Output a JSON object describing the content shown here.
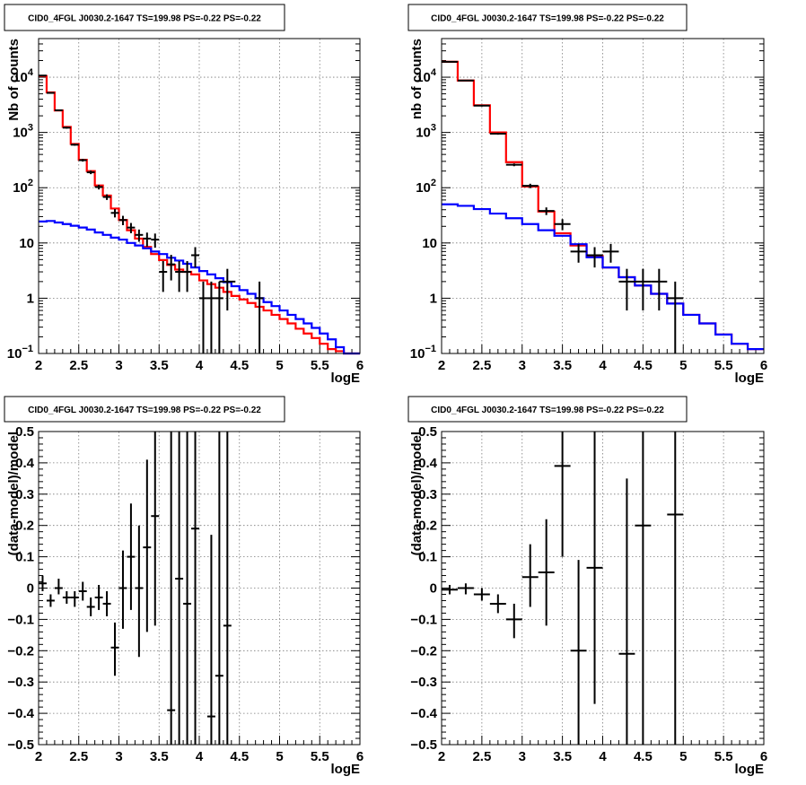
{
  "chart_data": [
    {
      "type": "step",
      "title": "CID0_4FGL J0030.2-1647 TS=199.98 PS=-0.22 PS=-0.22",
      "xlabel": "logE",
      "ylabel": "Nb of counts",
      "xscale": "linear",
      "yscale": "log",
      "xlim": [
        2,
        6
      ],
      "ylim": [
        0.1,
        50000
      ],
      "grid": true,
      "x_ticks": [
        "2",
        "2.5",
        "3",
        "3.5",
        "4",
        "4.5",
        "5",
        "5.5",
        "6"
      ],
      "y_ticks": [
        {
          "v": 0.1,
          "base": "10",
          "exp": "−1"
        },
        {
          "v": 1,
          "label": "1"
        },
        {
          "v": 10,
          "label": "10"
        },
        {
          "v": 100,
          "base": "10",
          "exp": "2"
        },
        {
          "v": 1000,
          "base": "10",
          "exp": "3"
        },
        {
          "v": 10000,
          "base": "10",
          "exp": "4"
        }
      ],
      "bin_edges": [
        2.0,
        2.1,
        2.2,
        2.3,
        2.4,
        2.5,
        2.6,
        2.7,
        2.8,
        2.9,
        3.0,
        3.1,
        3.2,
        3.3,
        3.4,
        3.5,
        3.6,
        3.7,
        3.8,
        3.9,
        4.0,
        4.1,
        4.2,
        4.3,
        4.4,
        4.5,
        4.6,
        4.7,
        4.8,
        4.9,
        5.0,
        5.1,
        5.2,
        5.3,
        5.4,
        5.5,
        5.6,
        5.7,
        5.8,
        5.9,
        6.0
      ],
      "series": [
        {
          "color": "#ff0000",
          "values": [
            10500,
            5300,
            2500,
            1260,
            620,
            320,
            200,
            110,
            72,
            42,
            26,
            17,
            12,
            8.5,
            6.3,
            4.9,
            4.0,
            3.3,
            3.0,
            2.7,
            2.1,
            1.8,
            1.55,
            1.3,
            1.1,
            0.95,
            0.82,
            0.7,
            0.6,
            0.5,
            0.42,
            0.35,
            0.28,
            0.23,
            0.19,
            0.15,
            0.12,
            0.11,
            0.1,
            0.1
          ]
        },
        {
          "color": "#0000ff",
          "values": [
            24.5,
            25,
            23.5,
            22,
            20.5,
            19,
            17.5,
            15.5,
            14,
            12.5,
            11.5,
            10,
            9,
            8,
            7,
            6.3,
            5.4,
            4.8,
            4.2,
            3.6,
            3.1,
            2.7,
            2.3,
            1.95,
            1.65,
            1.4,
            1.2,
            1.0,
            0.85,
            0.72,
            0.6,
            0.5,
            0.42,
            0.35,
            0.29,
            0.23,
            0.18,
            0.13,
            0.1,
            0.1
          ]
        }
      ],
      "points": [
        {
          "x": 2.05,
          "y": 10700,
          "lo": 10500,
          "hi": 10900,
          "xerr": 0.05
        },
        {
          "x": 2.15,
          "y": 5200,
          "lo": 5100,
          "hi": 5300,
          "xerr": 0.05
        },
        {
          "x": 2.25,
          "y": 2520,
          "lo": 2450,
          "hi": 2590,
          "xerr": 0.05
        },
        {
          "x": 2.35,
          "y": 1220,
          "lo": 1170,
          "hi": 1270,
          "xerr": 0.05
        },
        {
          "x": 2.45,
          "y": 600,
          "lo": 575,
          "hi": 625,
          "xerr": 0.05
        },
        {
          "x": 2.55,
          "y": 315,
          "lo": 297,
          "hi": 333,
          "xerr": 0.05
        },
        {
          "x": 2.65,
          "y": 190,
          "lo": 176,
          "hi": 204,
          "xerr": 0.05
        },
        {
          "x": 2.75,
          "y": 103,
          "lo": 93,
          "hi": 113,
          "xerr": 0.05
        },
        {
          "x": 2.85,
          "y": 68,
          "lo": 60,
          "hi": 76,
          "xerr": 0.05
        },
        {
          "x": 2.95,
          "y": 35,
          "lo": 29,
          "hi": 41,
          "xerr": 0.05
        },
        {
          "x": 3.05,
          "y": 26,
          "lo": 21,
          "hi": 31,
          "xerr": 0.05
        },
        {
          "x": 3.15,
          "y": 19,
          "lo": 15,
          "hi": 23,
          "xerr": 0.05
        },
        {
          "x": 3.25,
          "y": 14,
          "lo": 10.5,
          "hi": 17.5,
          "xerr": 0.05
        },
        {
          "x": 3.35,
          "y": 12,
          "lo": 8.6,
          "hi": 15.4,
          "xerr": 0.05
        },
        {
          "x": 3.45,
          "y": 11.5,
          "lo": 8.2,
          "hi": 14.8,
          "xerr": 0.05
        },
        {
          "x": 3.55,
          "y": 3,
          "lo": 1.3,
          "hi": 4.7,
          "xerr": 0.05
        },
        {
          "x": 3.65,
          "y": 4.1,
          "lo": 2.1,
          "hi": 6.1,
          "xerr": 0.05
        },
        {
          "x": 3.75,
          "y": 3,
          "lo": 1.3,
          "hi": 4.7,
          "xerr": 0.05
        },
        {
          "x": 3.85,
          "y": 3,
          "lo": 1.3,
          "hi": 4.7,
          "xerr": 0.05
        },
        {
          "x": 3.95,
          "y": 6,
          "lo": 3.6,
          "hi": 8.4,
          "xerr": 0.05
        },
        {
          "x": 4.05,
          "y": 1,
          "lo": 0.1,
          "hi": 2.0,
          "xerr": 0.05
        },
        {
          "x": 4.15,
          "y": 1,
          "lo": 0.1,
          "hi": 2.0,
          "xerr": 0.05
        },
        {
          "x": 4.25,
          "y": 1,
          "lo": 0.1,
          "hi": 2.0,
          "xerr": 0.05
        },
        {
          "x": 4.35,
          "y": 2,
          "lo": 0.6,
          "hi": 3.4,
          "xerr": 0.1
        },
        {
          "x": 4.75,
          "y": 1,
          "lo": 0.1,
          "hi": 2.0,
          "xerr": 0.05
        }
      ]
    },
    {
      "type": "step",
      "title": "CID0_4FGL J0030.2-1647 TS=199.98 PS=-0.22 PS=-0.22",
      "xlabel": "logE",
      "ylabel": "nb of counts",
      "xscale": "linear",
      "yscale": "log",
      "xlim": [
        2,
        6
      ],
      "ylim": [
        0.1,
        50000
      ],
      "grid": true,
      "x_ticks": [
        "2",
        "2.5",
        "3",
        "3.5",
        "4",
        "4.5",
        "5",
        "5.5",
        "6"
      ],
      "y_ticks": [
        {
          "v": 0.1,
          "base": "10",
          "exp": "−1"
        },
        {
          "v": 1,
          "label": "1"
        },
        {
          "v": 10,
          "label": "10"
        },
        {
          "v": 100,
          "base": "10",
          "exp": "2"
        },
        {
          "v": 1000,
          "base": "10",
          "exp": "3"
        },
        {
          "v": 10000,
          "base": "10",
          "exp": "4"
        }
      ],
      "bin_edges": [
        2.0,
        2.2,
        2.4,
        2.6,
        2.8,
        3.0,
        3.2,
        3.4,
        3.6,
        3.8,
        4.0,
        4.2,
        4.4,
        4.6,
        4.8,
        5.0,
        5.2,
        5.4,
        5.6,
        5.8,
        6.0
      ],
      "series": [
        {
          "color": "#ff0000",
          "values": [
            19000,
            8700,
            3100,
            1000,
            290,
            105,
            37,
            15,
            9,
            5.8,
            3.6,
            2.4,
            1.7,
            1.2,
            0.8,
            0.5,
            0.35,
            0.22,
            0.15,
            0.12
          ]
        },
        {
          "color": "#0000ff",
          "values": [
            50,
            47,
            41,
            34,
            28,
            22,
            17,
            13.5,
            9.5,
            5.5,
            3.6,
            2.4,
            1.7,
            1.2,
            0.8,
            0.5,
            0.35,
            0.22,
            0.15,
            0.12
          ]
        }
      ],
      "points": [
        {
          "x": 2.1,
          "y": 19000,
          "lo": 18700,
          "hi": 19300,
          "xerr": 0.1
        },
        {
          "x": 2.3,
          "y": 8700,
          "lo": 8500,
          "hi": 8900,
          "xerr": 0.1
        },
        {
          "x": 2.5,
          "y": 3050,
          "lo": 2950,
          "hi": 3150,
          "xerr": 0.1
        },
        {
          "x": 2.7,
          "y": 950,
          "lo": 910,
          "hi": 990,
          "xerr": 0.1
        },
        {
          "x": 2.9,
          "y": 260,
          "lo": 245,
          "hi": 275,
          "xerr": 0.1
        },
        {
          "x": 3.1,
          "y": 108,
          "lo": 98,
          "hi": 118,
          "xerr": 0.1
        },
        {
          "x": 3.3,
          "y": 38,
          "lo": 32,
          "hi": 44,
          "xerr": 0.1
        },
        {
          "x": 3.5,
          "y": 22,
          "lo": 17,
          "hi": 27,
          "xerr": 0.1
        },
        {
          "x": 3.7,
          "y": 7,
          "lo": 4.4,
          "hi": 9.6,
          "xerr": 0.1
        },
        {
          "x": 3.9,
          "y": 6,
          "lo": 3.6,
          "hi": 8.4,
          "xerr": 0.1
        },
        {
          "x": 4.1,
          "y": 7,
          "lo": 4.4,
          "hi": 9.6,
          "xerr": 0.1
        },
        {
          "x": 4.3,
          "y": 2,
          "lo": 0.6,
          "hi": 3.4,
          "xerr": 0.1
        },
        {
          "x": 4.5,
          "y": 2,
          "lo": 0.6,
          "hi": 3.4,
          "xerr": 0.1
        },
        {
          "x": 4.7,
          "y": 2,
          "lo": 0.6,
          "hi": 3.4,
          "xerr": 0.1
        },
        {
          "x": 4.9,
          "y": 1,
          "lo": 0.1,
          "hi": 2.0,
          "xerr": 0.1
        }
      ]
    },
    {
      "type": "scatter",
      "title": "CID0_4FGL J0030.2-1647 TS=199.98 PS=-0.22 PS=-0.22",
      "xlabel": "logE",
      "ylabel": "(data-model)/model",
      "xscale": "linear",
      "yscale": "linear",
      "xlim": [
        2,
        6
      ],
      "ylim": [
        -0.5,
        0.5
      ],
      "grid": true,
      "x_ticks": [
        "2",
        "2.5",
        "3",
        "3.5",
        "4",
        "4.5",
        "5",
        "5.5",
        "6"
      ],
      "y_ticks": [
        {
          "v": -0.5,
          "label": "−0.5"
        },
        {
          "v": -0.4,
          "label": "−0.4"
        },
        {
          "v": -0.3,
          "label": "−0.3"
        },
        {
          "v": -0.2,
          "label": "−0.2"
        },
        {
          "v": -0.1,
          "label": "−0.1"
        },
        {
          "v": 0,
          "label": "0"
        },
        {
          "v": 0.1,
          "label": "0.1"
        },
        {
          "v": 0.2,
          "label": "0.2"
        },
        {
          "v": 0.3,
          "label": "0.3"
        },
        {
          "v": 0.4,
          "label": "0.4"
        },
        {
          "v": 0.5,
          "label": "0.5"
        }
      ],
      "points": [
        {
          "x": 2.05,
          "y": 0.015,
          "lo": -0.01,
          "hi": 0.04,
          "xerr": 0.05
        },
        {
          "x": 2.15,
          "y": -0.04,
          "lo": -0.06,
          "hi": -0.02,
          "xerr": 0.05
        },
        {
          "x": 2.25,
          "y": 0.0,
          "lo": -0.02,
          "hi": 0.03,
          "xerr": 0.05
        },
        {
          "x": 2.35,
          "y": -0.03,
          "lo": -0.05,
          "hi": -0.01,
          "xerr": 0.05
        },
        {
          "x": 2.45,
          "y": -0.03,
          "lo": -0.06,
          "hi": -0.01,
          "xerr": 0.05
        },
        {
          "x": 2.55,
          "y": -0.01,
          "lo": -0.04,
          "hi": 0.02,
          "xerr": 0.05
        },
        {
          "x": 2.65,
          "y": -0.06,
          "lo": -0.09,
          "hi": -0.03,
          "xerr": 0.05
        },
        {
          "x": 2.75,
          "y": -0.03,
          "lo": -0.07,
          "hi": 0.01,
          "xerr": 0.05
        },
        {
          "x": 2.85,
          "y": -0.05,
          "lo": -0.09,
          "hi": -0.01,
          "xerr": 0.05
        },
        {
          "x": 2.95,
          "y": -0.19,
          "lo": -0.28,
          "hi": -0.11,
          "xerr": 0.05
        },
        {
          "x": 3.05,
          "y": 0.0,
          "lo": -0.13,
          "hi": 0.12,
          "xerr": 0.05
        },
        {
          "x": 3.15,
          "y": 0.1,
          "lo": -0.07,
          "hi": 0.27,
          "xerr": 0.05
        },
        {
          "x": 3.25,
          "y": 0.0,
          "lo": -0.22,
          "hi": 0.2,
          "xerr": 0.05
        },
        {
          "x": 3.35,
          "y": 0.13,
          "lo": -0.14,
          "hi": 0.41,
          "xerr": 0.05
        },
        {
          "x": 3.45,
          "y": 0.23,
          "lo": -0.12,
          "hi": 0.5,
          "xerr": 0.05
        },
        {
          "x": 3.65,
          "y": -0.39,
          "lo": -0.5,
          "hi": 0.5,
          "xerr": 0.05
        },
        {
          "x": 3.75,
          "y": 0.03,
          "lo": -0.5,
          "hi": 0.5,
          "xerr": 0.05
        },
        {
          "x": 3.85,
          "y": -0.05,
          "lo": -0.5,
          "hi": 0.5,
          "xerr": 0.05
        },
        {
          "x": 3.95,
          "y": 0.19,
          "lo": -0.5,
          "hi": 0.5,
          "xerr": 0.05
        },
        {
          "x": 4.15,
          "y": -0.41,
          "lo": -0.5,
          "hi": 0.17,
          "xerr": 0.05
        },
        {
          "x": 4.25,
          "y": -0.28,
          "lo": -0.5,
          "hi": 0.5,
          "xerr": 0.05
        },
        {
          "x": 4.35,
          "y": -0.12,
          "lo": -0.5,
          "hi": 0.5,
          "xerr": 0.05
        }
      ]
    },
    {
      "type": "scatter",
      "title": "CID0_4FGL J0030.2-1647 TS=199.98 PS=-0.22 PS=-0.22",
      "xlabel": "logE",
      "ylabel": "(data-model)/model",
      "xscale": "linear",
      "yscale": "linear",
      "xlim": [
        2,
        6
      ],
      "ylim": [
        -0.5,
        0.5
      ],
      "grid": true,
      "x_ticks": [
        "2",
        "2.5",
        "3",
        "3.5",
        "4",
        "4.5",
        "5",
        "5.5",
        "6"
      ],
      "y_ticks": [
        {
          "v": -0.5,
          "label": "−0.5"
        },
        {
          "v": -0.4,
          "label": "−0.4"
        },
        {
          "v": -0.3,
          "label": "−0.3"
        },
        {
          "v": -0.2,
          "label": "−0.2"
        },
        {
          "v": -0.1,
          "label": "−0.1"
        },
        {
          "v": 0,
          "label": "0"
        },
        {
          "v": 0.1,
          "label": "0.1"
        },
        {
          "v": 0.2,
          "label": "0.2"
        },
        {
          "v": 0.3,
          "label": "0.3"
        },
        {
          "v": 0.4,
          "label": "0.4"
        },
        {
          "v": 0.5,
          "label": "0.5"
        }
      ],
      "points": [
        {
          "x": 2.1,
          "y": -0.005,
          "lo": -0.02,
          "hi": 0.01,
          "xerr": 0.1
        },
        {
          "x": 2.3,
          "y": 0.0,
          "lo": -0.02,
          "hi": 0.015,
          "xerr": 0.1
        },
        {
          "x": 2.5,
          "y": -0.02,
          "lo": -0.04,
          "hi": 0.0,
          "xerr": 0.1
        },
        {
          "x": 2.7,
          "y": -0.05,
          "lo": -0.08,
          "hi": -0.02,
          "xerr": 0.1
        },
        {
          "x": 2.9,
          "y": -0.1,
          "lo": -0.16,
          "hi": -0.05,
          "xerr": 0.1
        },
        {
          "x": 3.1,
          "y": 0.035,
          "lo": -0.06,
          "hi": 0.14,
          "xerr": 0.1
        },
        {
          "x": 3.3,
          "y": 0.05,
          "lo": -0.12,
          "hi": 0.22,
          "xerr": 0.1
        },
        {
          "x": 3.5,
          "y": 0.39,
          "lo": 0.1,
          "hi": 0.5,
          "xerr": 0.1
        },
        {
          "x": 3.7,
          "y": -0.2,
          "lo": -0.5,
          "hi": 0.09,
          "xerr": 0.1
        },
        {
          "x": 3.9,
          "y": 0.065,
          "lo": -0.37,
          "hi": 0.5,
          "xerr": 0.1
        },
        {
          "x": 4.3,
          "y": -0.21,
          "lo": -0.5,
          "hi": 0.35,
          "xerr": 0.1
        },
        {
          "x": 4.5,
          "y": 0.2,
          "lo": -0.5,
          "hi": 0.5,
          "xerr": 0.1
        },
        {
          "x": 4.9,
          "y": 0.235,
          "lo": -0.5,
          "hi": 0.5,
          "xerr": 0.1
        }
      ]
    }
  ]
}
